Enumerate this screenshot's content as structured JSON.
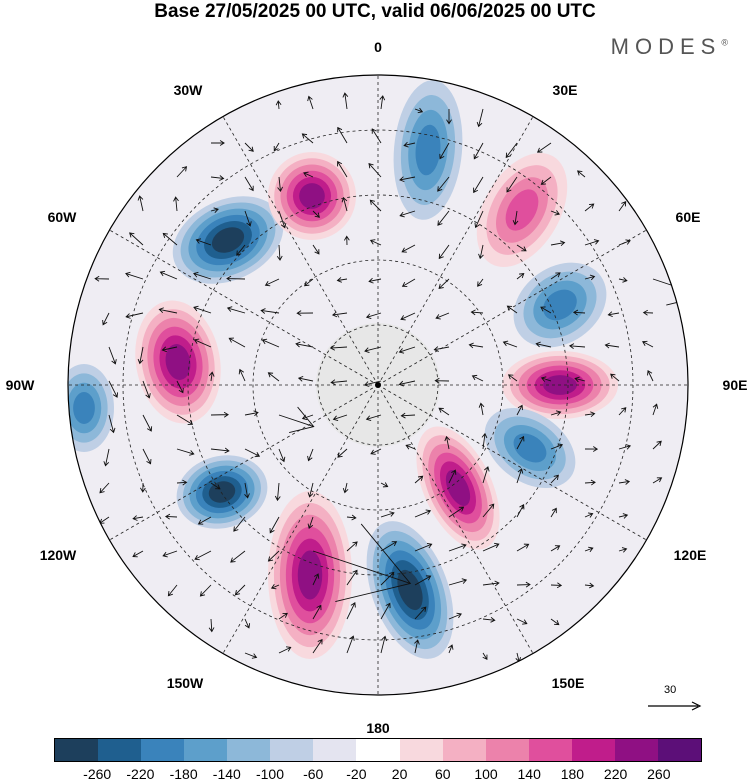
{
  "title": "Base 27/05/2025 00 UTC, valid 06/06/2025 00 UTC",
  "logo": "MODES",
  "logo_mark": "®",
  "projection": "south-polar-stereographic",
  "longitude_labels": {
    "top": "0",
    "top_right": "30E",
    "right_upper": "60E",
    "right": "90E",
    "right_lower": "120E",
    "bottom_right": "150E",
    "bottom": "180",
    "bottom_left": "150W",
    "left_lower": "120W",
    "left": "90W",
    "left_upper": "60W",
    "top_left": "30W"
  },
  "vector_scale": {
    "label": "30",
    "arrow": "reference-arrow-icon"
  },
  "colorbar": {
    "colors": [
      "#1d3f5c",
      "#1f5f8f",
      "#3a83bb",
      "#5d9fcb",
      "#8db8d9",
      "#bfcfe5",
      "#e4e4f0",
      "#ffffff",
      "#f8d9de",
      "#f4b0c3",
      "#ec82ab",
      "#e04f9d",
      "#c01d8b",
      "#8f1083",
      "#5c0f78"
    ],
    "tick_labels": [
      "-260",
      "-220",
      "-180",
      "-140",
      "-100",
      "-60",
      "-20",
      "20",
      "60",
      "100",
      "140",
      "180",
      "220",
      "260"
    ]
  },
  "anomaly_centers": [
    {
      "sign": "negative",
      "intensity": "strong"
    },
    {
      "sign": "positive",
      "intensity": "strong"
    },
    {
      "sign": "negative",
      "intensity": "moderate"
    },
    {
      "sign": "positive",
      "intensity": "moderate"
    },
    {
      "sign": "negative",
      "intensity": "moderate"
    },
    {
      "sign": "positive",
      "intensity": "strong"
    },
    {
      "sign": "negative",
      "intensity": "moderate"
    },
    {
      "sign": "positive",
      "intensity": "strong"
    },
    {
      "sign": "negative",
      "intensity": "strong"
    },
    {
      "sign": "positive",
      "intensity": "strong"
    },
    {
      "sign": "negative",
      "intensity": "strong"
    },
    {
      "sign": "positive",
      "intensity": "strong"
    },
    {
      "sign": "negative",
      "intensity": "moderate"
    }
  ]
}
